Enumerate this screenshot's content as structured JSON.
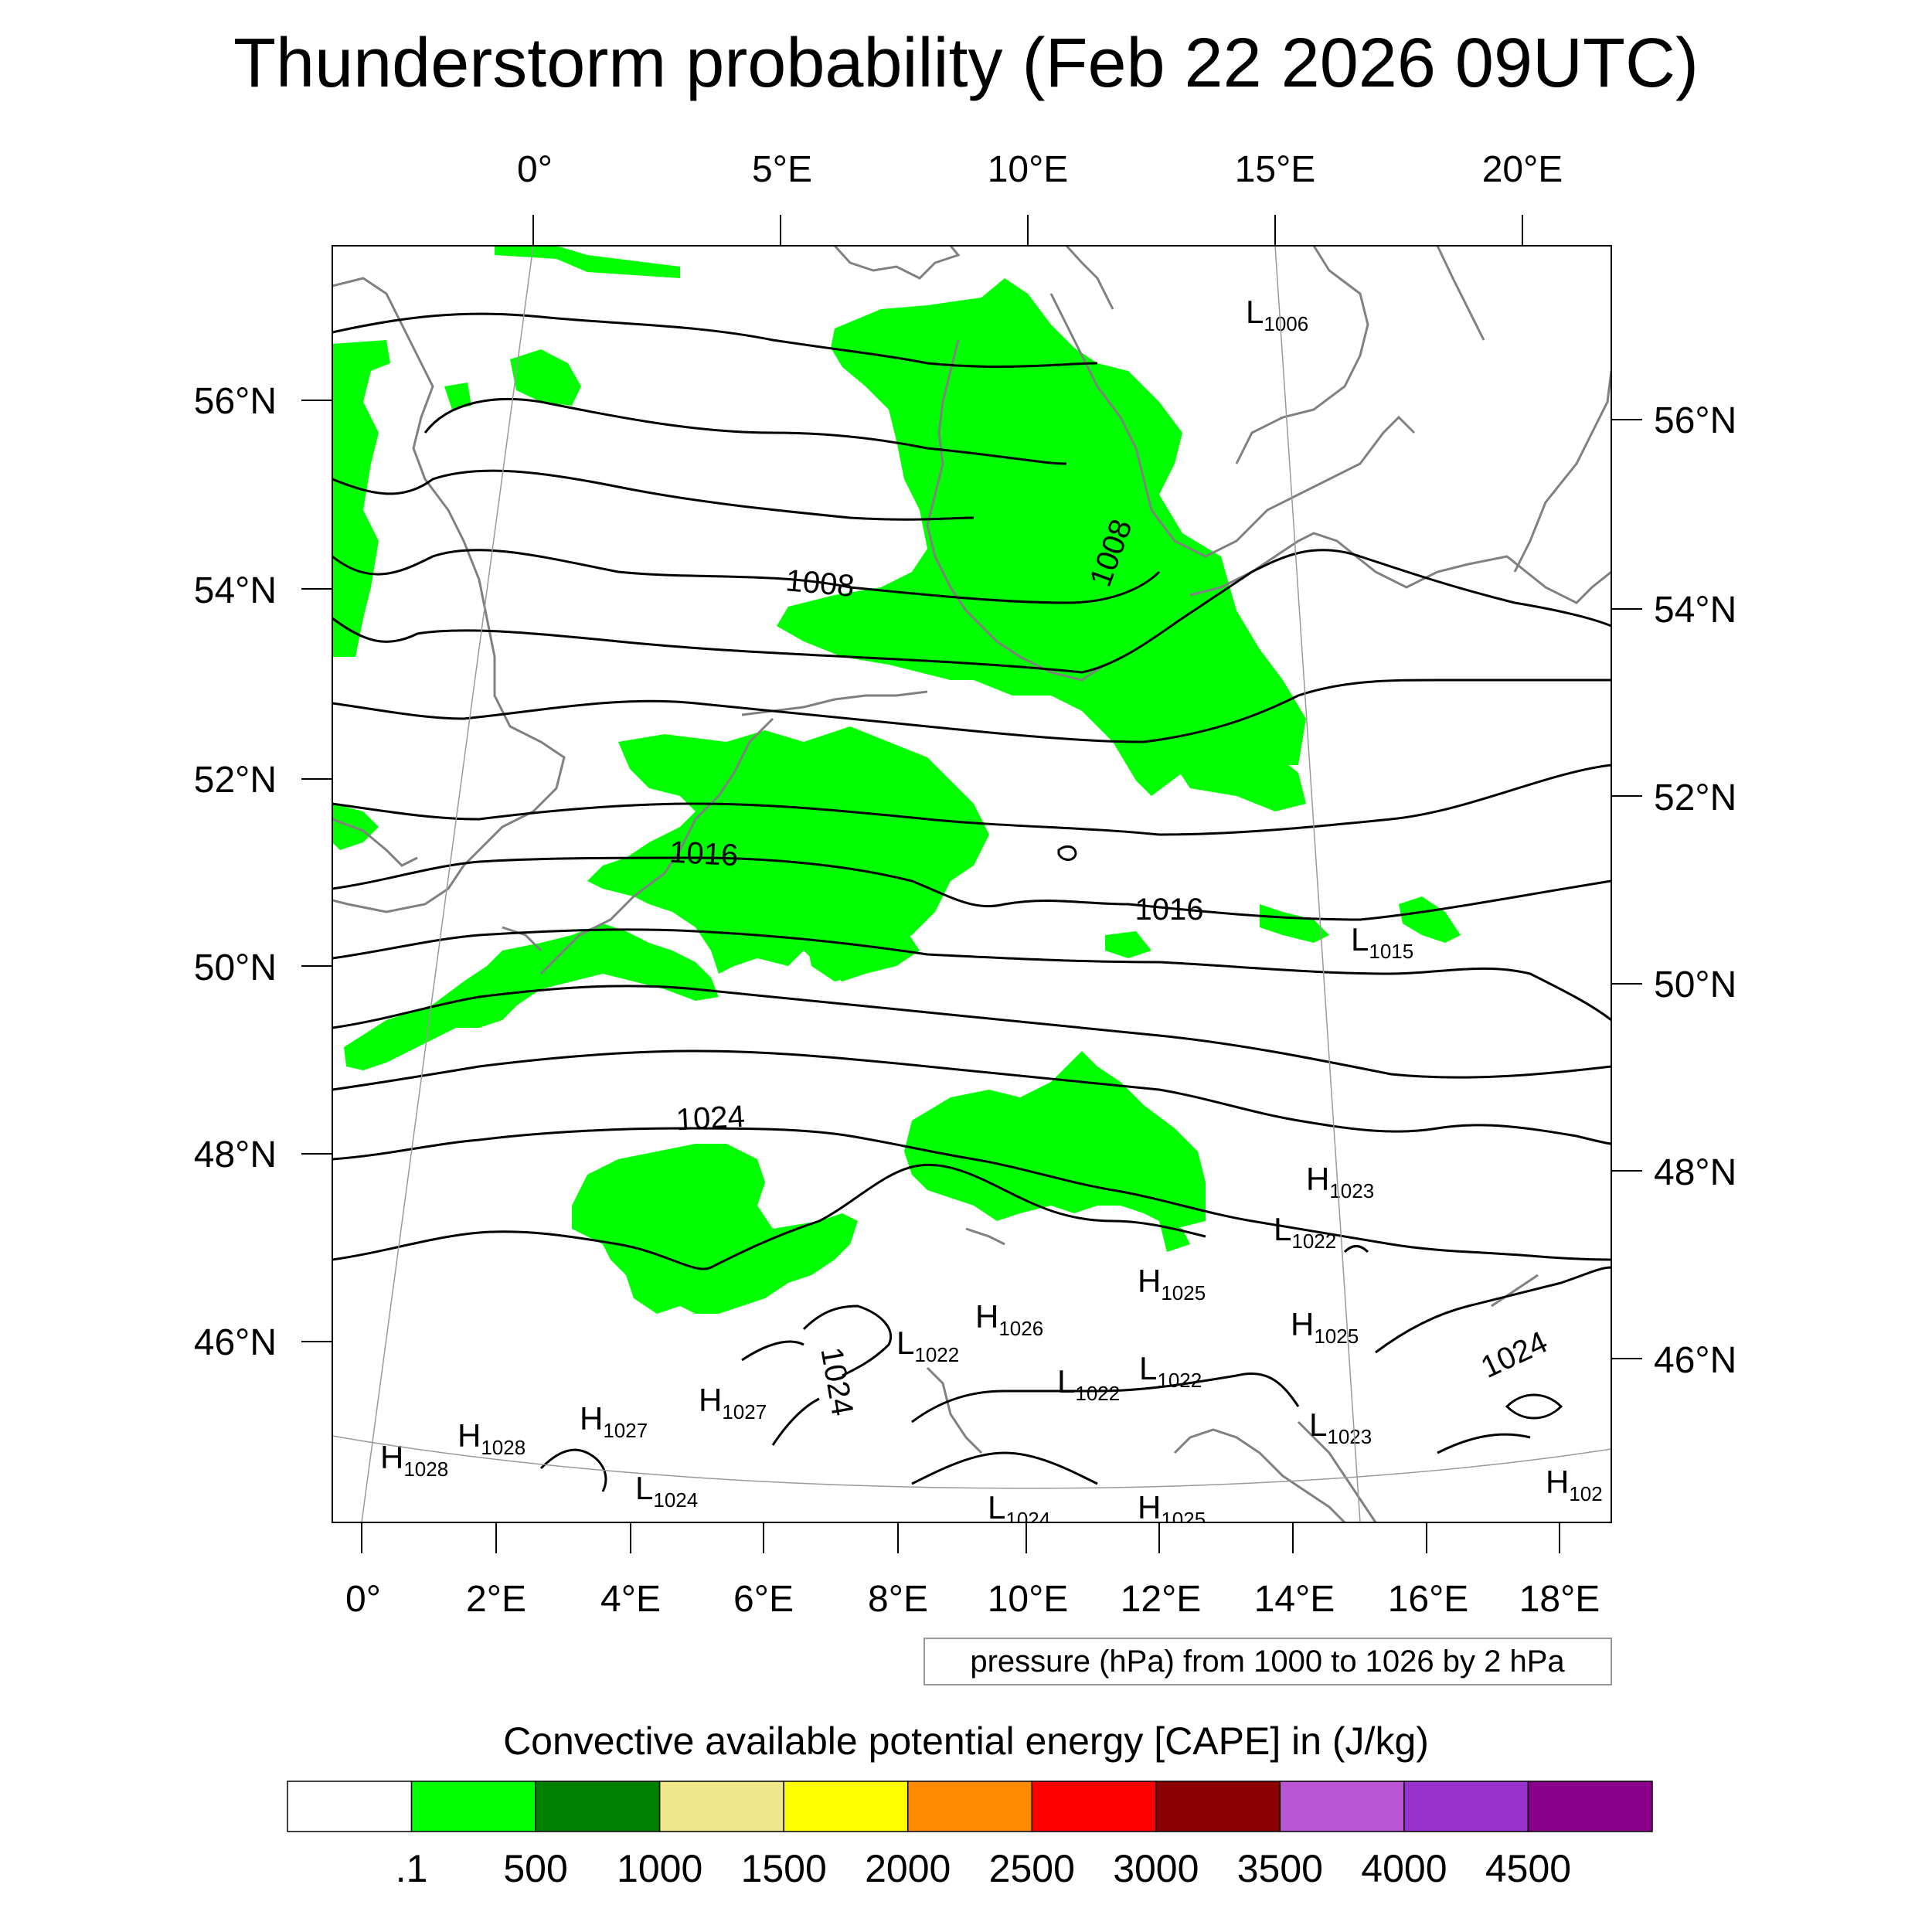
{
  "title": "Thunderstorm probability (Feb 22 2026 09UTC)",
  "top_lon_labels": [
    "0°",
    "5°E",
    "10°E",
    "15°E",
    "20°E"
  ],
  "bottom_lon_labels": [
    "0°",
    "2°E",
    "4°E",
    "6°E",
    "8°E",
    "10°E",
    "12°E",
    "14°E",
    "16°E",
    "18°E"
  ],
  "left_lat_labels": [
    "56°N",
    "54°N",
    "52°N",
    "50°N",
    "48°N",
    "46°N"
  ],
  "right_lat_labels": [
    "56°N",
    "54°N",
    "52°N",
    "50°N",
    "48°N",
    "46°N"
  ],
  "isobar_labels": [
    "1008",
    "1008",
    "1016",
    "1016",
    "1024",
    "1024",
    "1024"
  ],
  "pressure_centers": [
    {
      "letter": "L",
      "value": "1006"
    },
    {
      "letter": "L",
      "value": "1015"
    },
    {
      "letter": "H",
      "value": "1023"
    },
    {
      "letter": "L",
      "value": "1022"
    },
    {
      "letter": "H",
      "value": "1025"
    },
    {
      "letter": "H",
      "value": "1025"
    },
    {
      "letter": "H",
      "value": "1026"
    },
    {
      "letter": "L",
      "value": "1022"
    },
    {
      "letter": "L",
      "value": "1022"
    },
    {
      "letter": "L",
      "value": "1022"
    },
    {
      "letter": "H",
      "value": "1027"
    },
    {
      "letter": "H",
      "value": "1027"
    },
    {
      "letter": "H",
      "value": "1028"
    },
    {
      "letter": "H",
      "value": "1028"
    },
    {
      "letter": "L",
      "value": "1024"
    },
    {
      "letter": "L",
      "value": "1023"
    },
    {
      "letter": "L",
      "value": "1024"
    },
    {
      "letter": "H",
      "value": "1025"
    },
    {
      "letter": "H",
      "value": "102"
    }
  ],
  "contour_info": "pressure (hPa) from 1000 to 1026 by 2 hPa",
  "colorbar": {
    "title": "Convective available potential energy [CAPE] in (J/kg)",
    "colors": [
      "#ffffff",
      "#00ff00",
      "#008000",
      "#f0e68c",
      "#ffff00",
      "#ff8c00",
      "#ff0000",
      "#8b0000",
      "#ba55d3",
      "#9932cc",
      "#8b008b"
    ],
    "labels": [
      ".1",
      "500",
      "1000",
      "1500",
      "2000",
      "2500",
      "3000",
      "3500",
      "4000",
      "4500"
    ]
  },
  "colors": {
    "cape_fill": "#00ff00",
    "coast": "#808080",
    "isobar": "#000000"
  }
}
